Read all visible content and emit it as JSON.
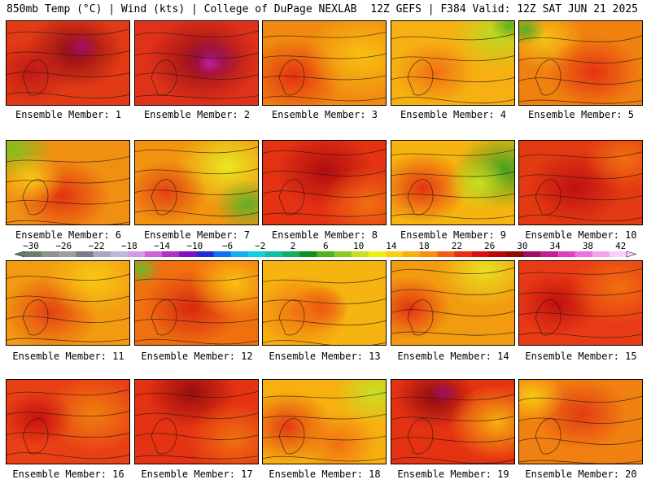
{
  "header": {
    "left": "850mb Temp (°C) | Wind (kts) | College of DuPage NEXLAB",
    "right": "12Z GEFS | F384 Valid: 12Z SAT JUN 21 2025"
  },
  "colorbar": {
    "tick_labels": [
      "-30",
      "-26",
      "-22",
      "-18",
      "-14",
      "-10",
      "-6",
      "-2",
      "2",
      "6",
      "10",
      "14",
      "18",
      "22",
      "26",
      "30",
      "34",
      "38",
      "42"
    ],
    "colors": [
      "#6e7c6e",
      "#8a948a",
      "#9e9e9e",
      "#7c7c8c",
      "#a8a8c0",
      "#c0b8d8",
      "#d898e8",
      "#d060d8",
      "#b030c0",
      "#8010c0",
      "#2030d0",
      "#1070f0",
      "#10b0f0",
      "#10d0e0",
      "#10c0a0",
      "#10b060",
      "#109020",
      "#50b020",
      "#90c820",
      "#c8e020",
      "#f0f010",
      "#f8d010",
      "#f8b010",
      "#f89010",
      "#f06010",
      "#e83010",
      "#d81010",
      "#b80808",
      "#900808",
      "#a01060",
      "#c02090",
      "#e040c0",
      "#f070e0",
      "#f8a0f0",
      "#f8d0f8"
    ]
  },
  "member_label_prefix": "Ensemble Member:",
  "members": [
    {
      "n": "1",
      "base": "#e23a14",
      "spots": [
        [
          "#8a0a14",
          0.55,
          0.35,
          0.3
        ],
        [
          "#c01818",
          0.2,
          0.6,
          0.25
        ],
        [
          "#a81060",
          0.6,
          0.3,
          0.12
        ]
      ]
    },
    {
      "n": "2",
      "base": "#e0321a",
      "spots": [
        [
          "#900a14",
          0.55,
          0.45,
          0.35
        ],
        [
          "#a01070",
          0.62,
          0.45,
          0.18
        ],
        [
          "#c02090",
          0.6,
          0.5,
          0.08
        ]
      ]
    },
    {
      "n": "3",
      "base": "#f08a10",
      "spots": [
        [
          "#e43212",
          0.25,
          0.65,
          0.3
        ],
        [
          "#f8c010",
          0.8,
          0.4,
          0.35
        ]
      ]
    },
    {
      "n": "4",
      "base": "#f6b012",
      "spots": [
        [
          "#b8dc24",
          0.85,
          0.15,
          0.28
        ],
        [
          "#f07012",
          0.35,
          0.6,
          0.25
        ],
        [
          "#5cb020",
          0.95,
          0.05,
          0.12
        ]
      ]
    },
    {
      "n": "5",
      "base": "#f08010",
      "spots": [
        [
          "#f4c414",
          0.2,
          0.2,
          0.25
        ],
        [
          "#e43212",
          0.6,
          0.6,
          0.28
        ],
        [
          "#50b028",
          0.05,
          0.1,
          0.12
        ]
      ]
    },
    {
      "n": "6",
      "base": "#f09012",
      "spots": [
        [
          "#80c020",
          0.05,
          0.1,
          0.25
        ],
        [
          "#e43212",
          0.45,
          0.65,
          0.3
        ],
        [
          "#f8c814",
          0.2,
          0.45,
          0.2
        ]
      ]
    },
    {
      "n": "7",
      "base": "#f29410",
      "spots": [
        [
          "#e8e820",
          0.75,
          0.3,
          0.32
        ],
        [
          "#60b028",
          0.9,
          0.75,
          0.2
        ],
        [
          "#e24014",
          0.25,
          0.6,
          0.25
        ]
      ]
    },
    {
      "n": "8",
      "base": "#e43212",
      "spots": [
        [
          "#b00c10",
          0.5,
          0.35,
          0.3
        ],
        [
          "#f07012",
          0.85,
          0.75,
          0.3
        ]
      ]
    },
    {
      "n": "9",
      "base": "#f6b410",
      "spots": [
        [
          "#3ea020",
          0.9,
          0.35,
          0.3
        ],
        [
          "#e43212",
          0.25,
          0.55,
          0.28
        ],
        [
          "#c8e020",
          0.7,
          0.5,
          0.2
        ]
      ]
    },
    {
      "n": "10",
      "base": "#e43a12",
      "spots": [
        [
          "#c01010",
          0.45,
          0.55,
          0.3
        ],
        [
          "#f07010",
          0.85,
          0.2,
          0.25
        ]
      ]
    },
    {
      "n": "11",
      "base": "#f29a10",
      "spots": [
        [
          "#e44012",
          0.35,
          0.6,
          0.3
        ],
        [
          "#f8c814",
          0.7,
          0.2,
          0.3
        ]
      ]
    },
    {
      "n": "12",
      "base": "#f07010",
      "spots": [
        [
          "#d82810",
          0.45,
          0.55,
          0.3
        ],
        [
          "#f8c010",
          0.8,
          0.25,
          0.28
        ],
        [
          "#70b828",
          0.05,
          0.1,
          0.12
        ]
      ]
    },
    {
      "n": "13",
      "base": "#f6b410",
      "spots": [
        [
          "#e83a14",
          0.45,
          0.55,
          0.18
        ],
        [
          "#f07010",
          0.3,
          0.6,
          0.3
        ]
      ]
    },
    {
      "n": "14",
      "base": "#f29a10",
      "spots": [
        [
          "#e8e020",
          0.75,
          0.1,
          0.3
        ],
        [
          "#e43212",
          0.15,
          0.55,
          0.25
        ]
      ]
    },
    {
      "n": "15",
      "base": "#e83a14",
      "spots": [
        [
          "#c01010",
          0.3,
          0.5,
          0.25
        ],
        [
          "#f07010",
          0.8,
          0.3,
          0.3
        ]
      ]
    },
    {
      "n": "16",
      "base": "#e84014",
      "spots": [
        [
          "#f08010",
          0.7,
          0.4,
          0.3
        ],
        [
          "#c81010",
          0.25,
          0.45,
          0.22
        ]
      ]
    },
    {
      "n": "17",
      "base": "#e43212",
      "spots": [
        [
          "#9a0c10",
          0.45,
          0.15,
          0.28
        ],
        [
          "#f07010",
          0.8,
          0.7,
          0.3
        ]
      ]
    },
    {
      "n": "18",
      "base": "#f6b010",
      "spots": [
        [
          "#c8e024",
          0.9,
          0.15,
          0.25
        ],
        [
          "#e43a12",
          0.2,
          0.55,
          0.28
        ],
        [
          "#f07010",
          0.6,
          0.75,
          0.25
        ]
      ]
    },
    {
      "n": "19",
      "base": "#e43212",
      "spots": [
        [
          "#900a10",
          0.35,
          0.2,
          0.25
        ],
        [
          "#a01060",
          0.42,
          0.15,
          0.1
        ],
        [
          "#f6b010",
          0.85,
          0.5,
          0.3
        ]
      ]
    },
    {
      "n": "20",
      "base": "#f08010",
      "spots": [
        [
          "#e43a14",
          0.5,
          0.4,
          0.28
        ],
        [
          "#f8c814",
          0.1,
          0.2,
          0.2
        ]
      ]
    }
  ]
}
